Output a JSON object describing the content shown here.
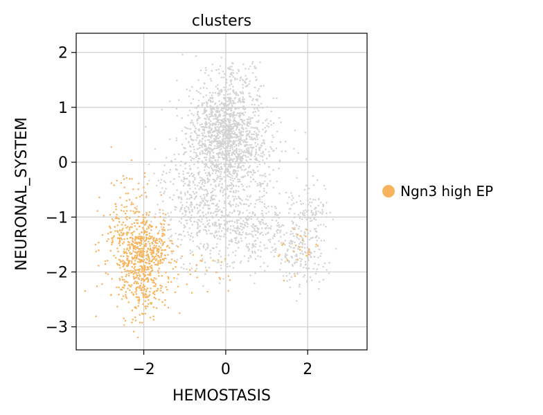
{
  "chart_data": {
    "type": "scatter",
    "title": "clusters",
    "xlabel": "HEMOSTASIS",
    "ylabel": "NEURONAL_SYSTEM",
    "xlim": [
      -3.65,
      3.45
    ],
    "ylim": [
      -3.42,
      2.35
    ],
    "xticks": [
      -2,
      0,
      2
    ],
    "xtick_labels": [
      "−2",
      "0",
      "2"
    ],
    "yticks": [
      -3,
      -2,
      -1,
      0,
      1,
      2
    ],
    "ytick_labels": [
      "−3",
      "−2",
      "−1",
      "0",
      "1",
      "2"
    ],
    "grid": true,
    "legend_position": "right",
    "series": [
      {
        "name": "",
        "color": "#d3d3d3",
        "clusters": [
          {
            "n": 1100,
            "center": [
              0.0,
              0.6
            ],
            "spread": [
              0.45,
              0.42
            ]
          },
          {
            "n": 420,
            "center": [
              0.15,
              0.05
            ],
            "spread": [
              0.6,
              0.4
            ]
          },
          {
            "n": 420,
            "center": [
              -0.4,
              -0.9
            ],
            "spread": [
              0.55,
              0.5
            ]
          },
          {
            "n": 300,
            "center": [
              0.7,
              -1.2
            ],
            "spread": [
              0.55,
              0.35
            ]
          },
          {
            "n": 140,
            "center": [
              2.05,
              -1.15
            ],
            "spread": [
              0.3,
              0.4
            ]
          },
          {
            "n": 110,
            "center": [
              1.8,
              -1.7
            ],
            "spread": [
              0.3,
              0.3
            ]
          },
          {
            "n": 110,
            "center": [
              -1.1,
              -0.55
            ],
            "spread": [
              0.35,
              0.45
            ]
          },
          {
            "n": 60,
            "center": [
              0.3,
              1.55
            ],
            "spread": [
              0.35,
              0.2
            ]
          }
        ]
      },
      {
        "name": "Ngn3 high EP",
        "color": "#f7b45d",
        "clusters": [
          {
            "n": 520,
            "center": [
              -2.0,
              -1.6
            ],
            "spread": [
              0.36,
              0.35
            ]
          },
          {
            "n": 200,
            "center": [
              -2.05,
              -2.25
            ],
            "spread": [
              0.3,
              0.35
            ]
          },
          {
            "n": 90,
            "center": [
              -2.5,
              -1.5
            ],
            "spread": [
              0.35,
              0.55
            ]
          },
          {
            "n": 40,
            "center": [
              -2.3,
              -0.6
            ],
            "spread": [
              0.3,
              0.35
            ]
          },
          {
            "n": 25,
            "center": [
              1.7,
              -1.6
            ],
            "spread": [
              0.25,
              0.2
            ]
          },
          {
            "n": 20,
            "center": [
              -0.5,
              -2.05
            ],
            "spread": [
              0.4,
              0.15
            ]
          }
        ]
      }
    ]
  }
}
